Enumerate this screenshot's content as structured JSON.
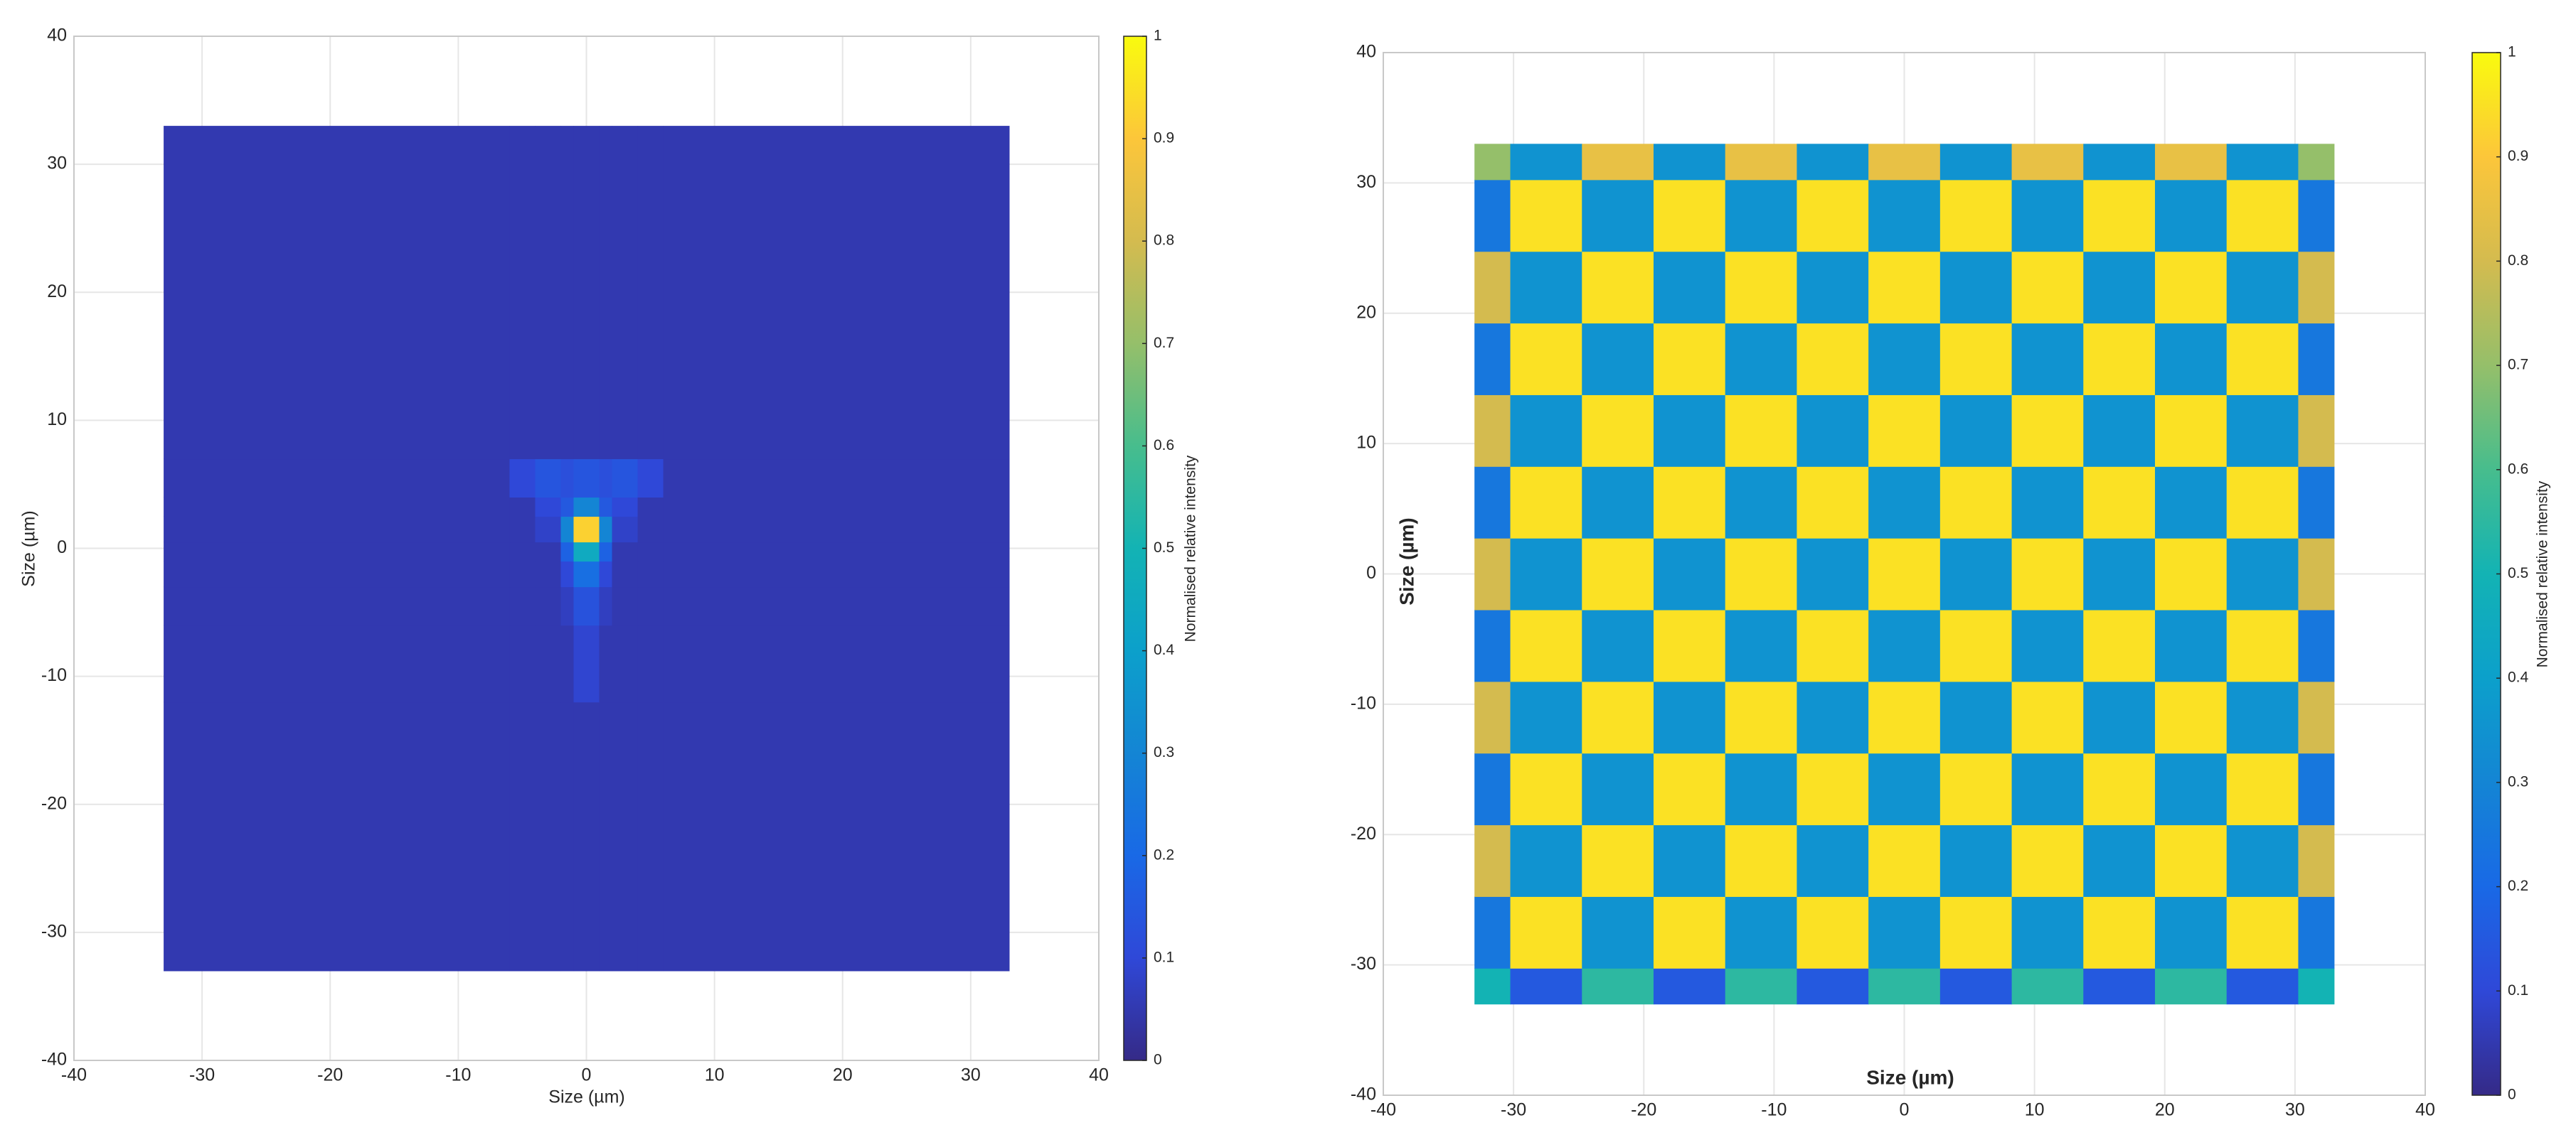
{
  "chart_data": [
    {
      "type": "heatmap",
      "x_label": "Size (µm)",
      "y_label": "Size (µm)",
      "x": [
        -33,
        -6,
        -4,
        -2,
        -1,
        1,
        2,
        4,
        6,
        33
      ],
      "y": [
        -33,
        -12,
        -6,
        -3,
        -1,
        0.5,
        2.5,
        4,
        7,
        33
      ],
      "z": [
        [
          0.05,
          0.05,
          0.05,
          0.05,
          0.05,
          0.05,
          0.05,
          0.05,
          0.05
        ],
        [
          0.05,
          0.05,
          0.05,
          0.05,
          0.09,
          0.05,
          0.05,
          0.05,
          0.05
        ],
        [
          0.05,
          0.05,
          0.05,
          0.07,
          0.13,
          0.07,
          0.05,
          0.05,
          0.05
        ],
        [
          0.05,
          0.05,
          0.05,
          0.1,
          0.22,
          0.1,
          0.05,
          0.05,
          0.05
        ],
        [
          0.05,
          0.05,
          0.05,
          0.18,
          0.45,
          0.18,
          0.05,
          0.05,
          0.05
        ],
        [
          0.05,
          0.05,
          0.08,
          0.3,
          0.92,
          0.3,
          0.08,
          0.05,
          0.05
        ],
        [
          0.05,
          0.05,
          0.1,
          0.15,
          0.3,
          0.15,
          0.1,
          0.05,
          0.05
        ],
        [
          0.05,
          0.1,
          0.14,
          0.12,
          0.14,
          0.12,
          0.14,
          0.1,
          0.05
        ],
        [
          0.05,
          0.05,
          0.05,
          0.05,
          0.05,
          0.05,
          0.05,
          0.05,
          0.05
        ]
      ],
      "xlim": [
        -40,
        40
      ],
      "ylim": [
        -40,
        40
      ],
      "xticks": [
        -40,
        -30,
        -20,
        -10,
        0,
        10,
        20,
        30,
        40
      ],
      "yticks": [
        -40,
        -30,
        -20,
        -10,
        0,
        10,
        20,
        30,
        40
      ],
      "grid": true,
      "colorbar": {
        "label": "Normalised relative intensity",
        "lim": [
          0,
          1
        ],
        "ticks": [
          0,
          0.1,
          0.2,
          0.3,
          0.4,
          0.5,
          0.6,
          0.7,
          0.8,
          0.9,
          1
        ]
      },
      "colormap": [
        "#352a87",
        "#2f48d8",
        "#1969e6",
        "#1485d4",
        "#0ca0cb",
        "#13b3b4",
        "#47bd8d",
        "#95bf6a",
        "#d4bb4f",
        "#fcc63a",
        "#f9fb0e"
      ]
    },
    {
      "type": "heatmap",
      "x_label": "Size (µm)",
      "y_label": "Size (µm)",
      "x": [
        -33,
        -30.25,
        -24.75,
        -19.25,
        -13.75,
        -8.25,
        -2.75,
        2.75,
        8.25,
        13.75,
        19.25,
        24.75,
        30.25,
        33
      ],
      "y": [
        -33,
        -30.25,
        -24.75,
        -19.25,
        -13.75,
        -8.25,
        -2.75,
        2.75,
        8.25,
        13.75,
        19.25,
        24.75,
        30.25,
        33
      ],
      "z": [
        [
          0.5,
          0.15,
          0.55,
          0.15,
          0.55,
          0.15,
          0.55,
          0.15,
          0.55,
          0.15,
          0.55,
          0.15,
          0.5
        ],
        [
          0.25,
          0.95,
          0.35,
          0.95,
          0.35,
          0.95,
          0.35,
          0.95,
          0.35,
          0.95,
          0.35,
          0.95,
          0.25
        ],
        [
          0.8,
          0.35,
          0.95,
          0.35,
          0.95,
          0.35,
          0.95,
          0.35,
          0.95,
          0.35,
          0.95,
          0.35,
          0.8
        ],
        [
          0.25,
          0.95,
          0.35,
          0.95,
          0.35,
          0.95,
          0.35,
          0.95,
          0.35,
          0.95,
          0.35,
          0.95,
          0.25
        ],
        [
          0.8,
          0.35,
          0.95,
          0.35,
          0.95,
          0.35,
          0.95,
          0.35,
          0.95,
          0.35,
          0.95,
          0.35,
          0.8
        ],
        [
          0.25,
          0.95,
          0.35,
          0.95,
          0.35,
          0.95,
          0.35,
          0.95,
          0.35,
          0.95,
          0.35,
          0.95,
          0.25
        ],
        [
          0.8,
          0.35,
          0.95,
          0.35,
          0.95,
          0.35,
          0.95,
          0.35,
          0.95,
          0.35,
          0.95,
          0.35,
          0.8
        ],
        [
          0.25,
          0.95,
          0.35,
          0.95,
          0.35,
          0.95,
          0.35,
          0.95,
          0.35,
          0.95,
          0.35,
          0.95,
          0.25
        ],
        [
          0.8,
          0.35,
          0.95,
          0.35,
          0.95,
          0.35,
          0.95,
          0.35,
          0.95,
          0.35,
          0.95,
          0.35,
          0.8
        ],
        [
          0.25,
          0.95,
          0.35,
          0.95,
          0.35,
          0.95,
          0.35,
          0.95,
          0.35,
          0.95,
          0.35,
          0.95,
          0.25
        ],
        [
          0.8,
          0.35,
          0.95,
          0.35,
          0.95,
          0.35,
          0.95,
          0.35,
          0.95,
          0.35,
          0.95,
          0.35,
          0.8
        ],
        [
          0.25,
          0.95,
          0.35,
          0.95,
          0.35,
          0.95,
          0.35,
          0.95,
          0.35,
          0.95,
          0.35,
          0.95,
          0.25
        ],
        [
          0.7,
          0.35,
          0.85,
          0.35,
          0.85,
          0.35,
          0.85,
          0.35,
          0.85,
          0.35,
          0.85,
          0.35,
          0.7
        ]
      ],
      "xlim": [
        -40,
        40
      ],
      "ylim": [
        -40,
        40
      ],
      "xticks": [
        -40,
        -30,
        -20,
        -10,
        0,
        10,
        20,
        30,
        40
      ],
      "yticks": [
        -40,
        -30,
        -20,
        -10,
        0,
        10,
        20,
        30,
        40
      ],
      "grid": true,
      "colorbar": {
        "label": "Normalised relative intensity",
        "lim": [
          0,
          1
        ],
        "ticks": [
          0,
          0.1,
          0.2,
          0.3,
          0.4,
          0.5,
          0.6,
          0.7,
          0.8,
          0.9,
          1
        ]
      },
      "colormap": [
        "#352a87",
        "#2f48d8",
        "#1969e6",
        "#1485d4",
        "#0ca0cb",
        "#13b3b4",
        "#47bd8d",
        "#95bf6a",
        "#d4bb4f",
        "#fcc63a",
        "#f9fb0e"
      ]
    }
  ]
}
